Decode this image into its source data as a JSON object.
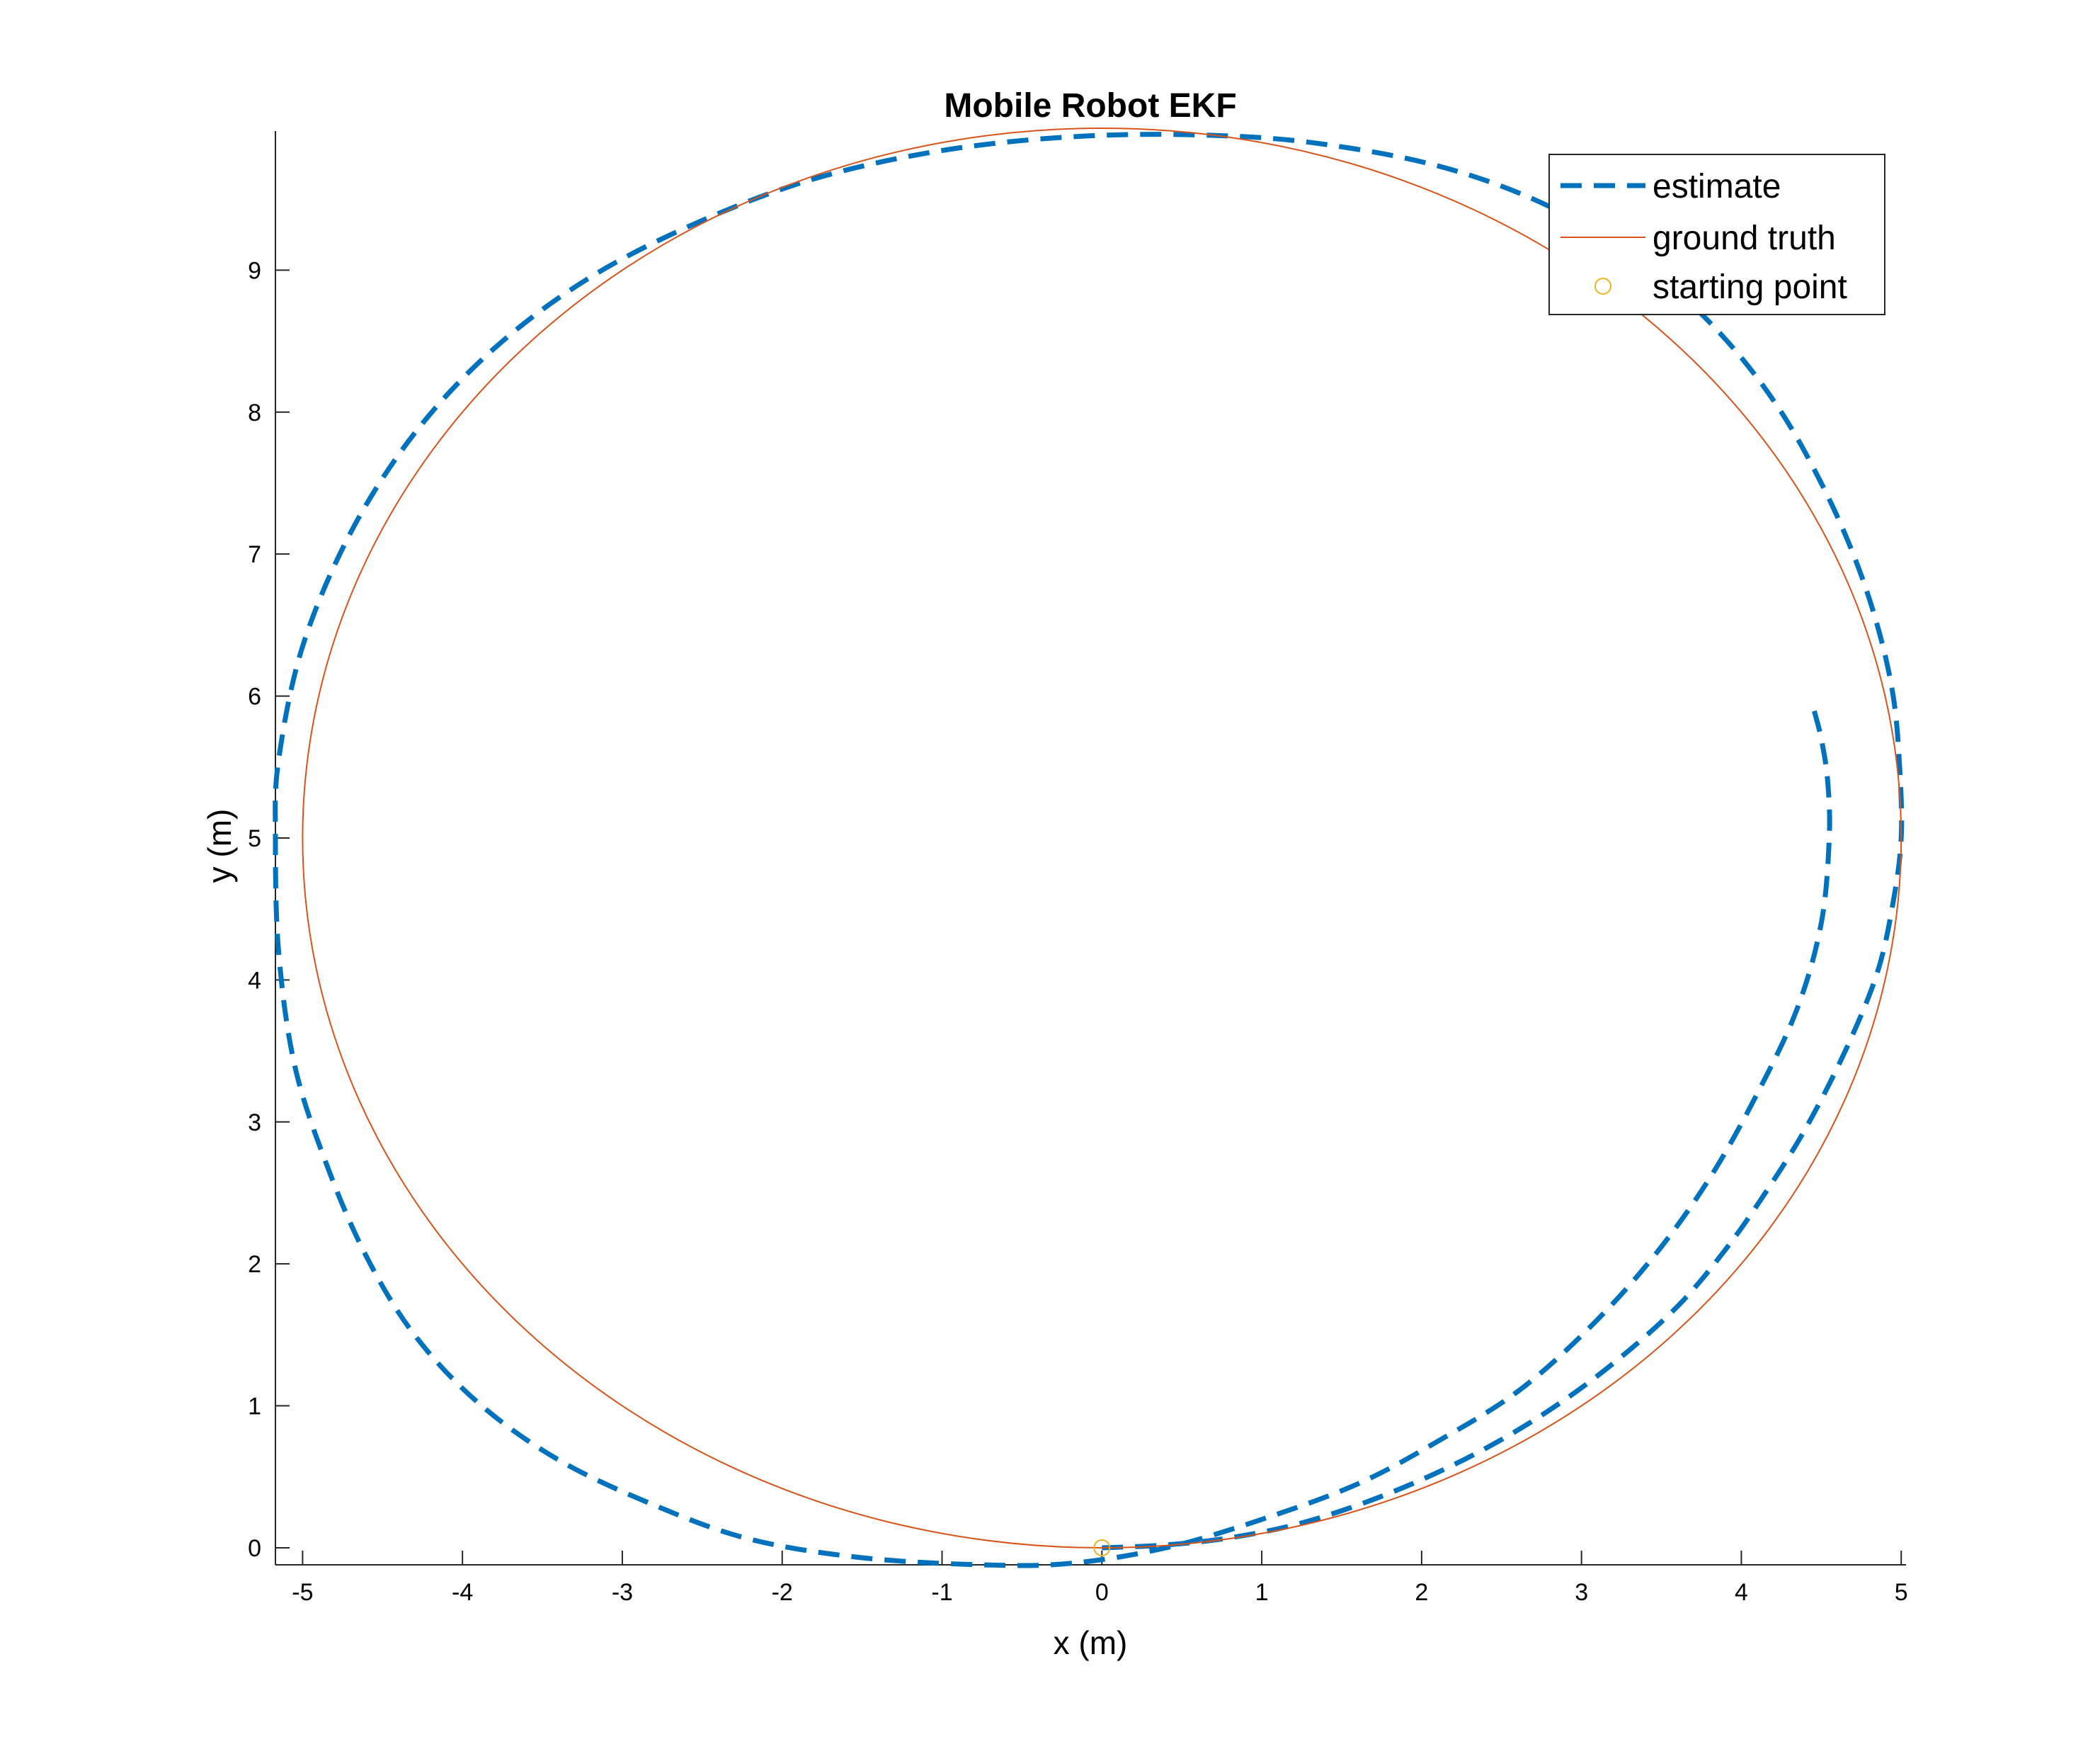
{
  "chart_data": {
    "type": "line",
    "title": "Mobile Robot EKF",
    "xlabel": "x (m)",
    "ylabel": "y (m)",
    "xlim": [
      -5.17,
      5.03
    ],
    "ylim": [
      -0.12,
      9.98
    ],
    "xticks": [
      -5,
      -4,
      -3,
      -2,
      -1,
      0,
      1,
      2,
      3,
      4,
      5
    ],
    "yticks": [
      0,
      1,
      2,
      3,
      4,
      5,
      6,
      7,
      8,
      9
    ],
    "grid": false,
    "legend_position": "top-right",
    "series": [
      {
        "name": "estimate",
        "style": "dashed",
        "color": "#0072BD",
        "x": [
          0.0,
          0.4,
          0.8,
          1.2,
          1.6,
          2.0,
          2.4,
          2.8,
          3.2,
          3.6,
          3.9,
          4.15,
          4.4,
          4.65,
          4.85,
          4.95,
          5.0,
          4.99,
          4.95,
          4.85,
          4.7,
          4.5,
          4.25,
          3.95,
          3.6,
          3.2,
          2.7,
          2.15,
          1.55,
          0.9,
          0.0,
          -0.9,
          -1.75,
          -2.5,
          -3.2,
          -3.8,
          -4.3,
          -4.7,
          -5.0,
          -5.15,
          -5.17,
          -5.15,
          -5.05,
          -4.85,
          -4.6,
          -4.3,
          -3.9,
          -3.4,
          -2.8,
          -2.2,
          -1.5,
          -0.75,
          -0.2,
          0.4,
          1.0,
          1.6,
          2.1,
          2.6,
          3.05,
          3.45,
          3.8,
          4.1,
          4.35,
          4.5,
          4.55,
          4.54,
          4.5,
          4.45
        ],
        "y": [
          0.0,
          0.02,
          0.07,
          0.16,
          0.3,
          0.48,
          0.7,
          0.97,
          1.3,
          1.7,
          2.1,
          2.5,
          2.95,
          3.5,
          4.05,
          4.55,
          5.0,
          5.5,
          6.0,
          6.5,
          7.0,
          7.5,
          8.0,
          8.45,
          8.85,
          9.2,
          9.5,
          9.72,
          9.86,
          9.94,
          9.95,
          9.86,
          9.66,
          9.35,
          8.95,
          8.45,
          7.85,
          7.15,
          6.35,
          5.55,
          5.0,
          4.2,
          3.4,
          2.7,
          2.05,
          1.5,
          1.02,
          0.62,
          0.3,
          0.06,
          -0.07,
          -0.12,
          -0.11,
          0.0,
          0.2,
          0.45,
          0.75,
          1.1,
          1.55,
          2.05,
          2.6,
          3.2,
          3.8,
          4.4,
          5.0,
          5.4,
          5.7,
          5.92
        ]
      },
      {
        "name": "ground truth",
        "style": "solid",
        "color": "#D95319",
        "parametric": "x = 5*sin(t), y = 5 - 5*cos(t)",
        "x_center": 0,
        "y_center": 5,
        "radius": 5
      },
      {
        "name": "starting point",
        "style": "marker",
        "marker": "circle",
        "color": "#EDB120",
        "x": [
          0
        ],
        "y": [
          0
        ]
      }
    ]
  }
}
